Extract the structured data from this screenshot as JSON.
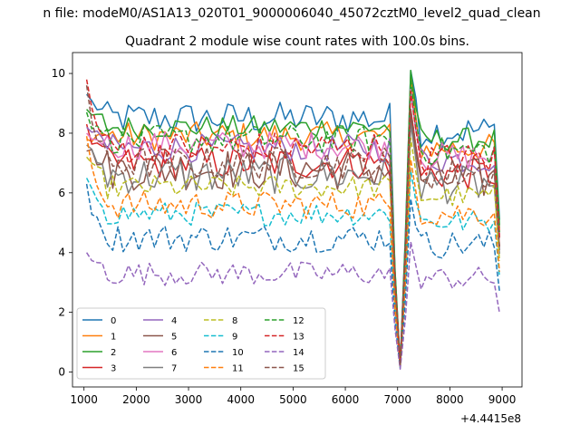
{
  "chart_data": {
    "type": "line",
    "suptitle": "n file: modeM0/AS1A13_020T01_9000006040_45072cztM0_level2_quad_clean",
    "title": "Quadrant 2 module wise count rates with 100.0s bins.",
    "offset_label": "+4.4415e8",
    "xlabel": "",
    "ylabel": "",
    "xlim": [
      780,
      9380
    ],
    "ylim": [
      -0.5,
      10.7
    ],
    "xticks": [
      1000,
      2000,
      3000,
      4000,
      5000,
      6000,
      7000,
      8000,
      9000
    ],
    "yticks": [
      0,
      2,
      4,
      6,
      8,
      10
    ],
    "x_start": 1050,
    "x_step": 100,
    "n_points": 80,
    "legend_location": "lower left",
    "legend_columns": 4,
    "series": [
      {
        "name": "0",
        "color": "#1f77b4",
        "style": "solid",
        "level": 8.5,
        "noise": 0.35,
        "first": 9.3
      },
      {
        "name": "1",
        "color": "#ff7f0e",
        "style": "solid",
        "level": 7.9,
        "noise": 0.3,
        "first": 7.8
      },
      {
        "name": "2",
        "color": "#2ca02c",
        "style": "solid",
        "level": 8.2,
        "noise": 0.25,
        "first": 8.8
      },
      {
        "name": "3",
        "color": "#d62728",
        "style": "solid",
        "level": 7.0,
        "noise": 0.35,
        "first": 8.3
      },
      {
        "name": "4",
        "color": "#9467bd",
        "style": "solid",
        "level": 7.5,
        "noise": 0.3,
        "first": 8.2
      },
      {
        "name": "5",
        "color": "#8c564b",
        "style": "solid",
        "level": 6.8,
        "noise": 0.45,
        "first": 7.4
      },
      {
        "name": "6",
        "color": "#e377c2",
        "style": "solid",
        "level": 7.6,
        "noise": 0.3,
        "first": 8.0
      },
      {
        "name": "7",
        "color": "#7f7f7f",
        "style": "solid",
        "level": 6.6,
        "noise": 0.4,
        "first": 7.6
      },
      {
        "name": "8",
        "color": "#bcbd22",
        "style": "dashed",
        "level": 6.2,
        "noise": 0.25,
        "first": 7.2
      },
      {
        "name": "9",
        "color": "#17becf",
        "style": "dashed",
        "level": 5.3,
        "noise": 0.25,
        "first": 6.5
      },
      {
        "name": "10",
        "color": "#1f77b4",
        "style": "dashed",
        "level": 4.5,
        "noise": 0.3,
        "first": 6.3
      },
      {
        "name": "11",
        "color": "#ff7f0e",
        "style": "dashed",
        "level": 5.6,
        "noise": 0.3,
        "first": 7.9
      },
      {
        "name": "12",
        "color": "#2ca02c",
        "style": "dashed",
        "level": 7.8,
        "noise": 0.3,
        "first": 8.7
      },
      {
        "name": "13",
        "color": "#d62728",
        "style": "dashed",
        "level": 7.5,
        "noise": 0.35,
        "first": 9.8
      },
      {
        "name": "14",
        "color": "#9467bd",
        "style": "dashed",
        "level": 3.3,
        "noise": 0.25,
        "first": 4.0
      },
      {
        "name": "15",
        "color": "#8c564b",
        "style": "dashed",
        "level": 7.0,
        "noise": 0.35,
        "first": 9.6
      }
    ],
    "features": {
      "dip_x": 7050,
      "dip_value": 0.0,
      "peak_x": 7250,
      "peak_value": 10.1,
      "post_level_scale": 0.95,
      "end_drop_value": 4.2
    }
  }
}
